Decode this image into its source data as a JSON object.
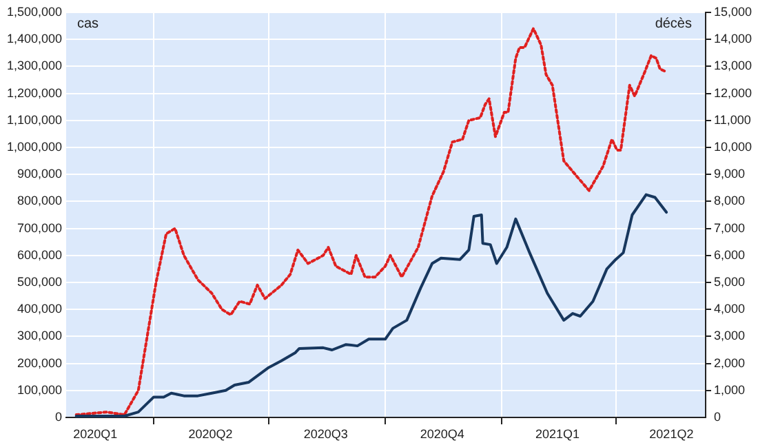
{
  "chart_data": {
    "type": "line",
    "ylabel": "cas",
    "y2label": "décès",
    "x": [
      "2020-01-31",
      "2020-03-09",
      "2020-03-20",
      "2020-04-01",
      "2020-04-09",
      "2020-04-15",
      "2020-04-25",
      "2020-05-06",
      "2020-05-17",
      "2020-05-28",
      "2020-06-04",
      "2020-06-15",
      "2020-07-01",
      "2020-07-11",
      "2020-07-22",
      "2020-07-25",
      "2020-08-13",
      "2020-08-20",
      "2020-08-31",
      "2020-09-09",
      "2020-09-18",
      "2020-10-01",
      "2020-10-07",
      "2020-10-18",
      "2020-10-29",
      "2020-11-07",
      "2020-11-14",
      "2020-11-29",
      "2020-12-06",
      "2020-12-10",
      "2020-12-16",
      "2020-12-17",
      "2020-12-23",
      "2020-12-28",
      "2021-01-05",
      "2021-01-12",
      "2021-01-23",
      "2021-02-06",
      "2021-02-19",
      "2021-02-26",
      "2021-03-04",
      "2021-03-14",
      "2021-03-25",
      "2021-04-01",
      "2021-04-07",
      "2021-04-14",
      "2021-04-25",
      "2021-05-02",
      "2021-05-11"
    ],
    "series": [
      {
        "color": "#17375e",
        "line_style": "solid",
        "values": [
          5000,
          5000,
          20000,
          75000,
          75000,
          90000,
          80000,
          80000,
          90000,
          100000,
          120000,
          130000,
          185000,
          210000,
          240000,
          255000,
          258000,
          250000,
          270000,
          265000,
          290000,
          290000,
          330000,
          360000,
          480000,
          570000,
          590000,
          585000,
          620000,
          745000,
          750000,
          645000,
          640000,
          570000,
          630000,
          735000,
          610000,
          460000,
          360000,
          385000,
          375000,
          430000,
          550000,
          585000,
          610000,
          750000,
          825000,
          815000,
          760000
        ]
      },
      {
        "color": "#e0201f",
        "line_style": "dotted",
        "axis": "y2",
        "x": [
          "2020-01-31",
          "2020-02-24",
          "2020-03-09",
          "2020-03-20",
          "2020-03-27",
          "2020-04-03",
          "2020-04-11",
          "2020-04-18",
          "2020-04-25",
          "2020-05-06",
          "2020-05-17",
          "2020-05-25",
          "2020-06-01",
          "2020-06-08",
          "2020-06-16",
          "2020-06-22",
          "2020-06-28",
          "2020-07-11",
          "2020-07-18",
          "2020-07-24",
          "2020-08-01",
          "2020-08-13",
          "2020-08-17",
          "2020-08-23",
          "2020-09-04",
          "2020-09-08",
          "2020-09-15",
          "2020-09-23",
          "2020-10-01",
          "2020-10-05",
          "2020-10-14",
          "2020-10-27",
          "2020-11-07",
          "2020-11-16",
          "2020-11-23",
          "2020-12-01",
          "2020-12-06",
          "2020-12-15",
          "2020-12-19",
          "2020-12-22",
          "2020-12-27",
          "2021-01-03",
          "2021-01-06",
          "2021-01-12",
          "2021-01-15",
          "2021-01-19",
          "2021-01-26",
          "2021-02-01",
          "2021-02-05",
          "2021-02-10",
          "2021-02-19",
          "2021-02-28",
          "2021-03-11",
          "2021-03-22",
          "2021-03-29",
          "2021-04-02",
          "2021-04-05",
          "2021-04-12",
          "2021-04-16",
          "2021-04-24",
          "2021-04-29",
          "2021-05-03",
          "2021-05-06",
          "2021-05-11"
        ],
        "values": [
          100,
          200,
          100,
          1000,
          3000,
          5000,
          6800,
          7000,
          6000,
          5100,
          4600,
          4000,
          3800,
          4300,
          4200,
          4900,
          4400,
          4900,
          5300,
          6200,
          5700,
          6000,
          6300,
          5600,
          5300,
          6000,
          5200,
          5200,
          5600,
          6000,
          5200,
          6300,
          8200,
          9100,
          10200,
          10300,
          11000,
          11100,
          11600,
          11800,
          10400,
          11300,
          11300,
          13300,
          13700,
          13700,
          14400,
          13800,
          12700,
          12300,
          9500,
          9000,
          8400,
          9300,
          10300,
          9900,
          9900,
          12300,
          11900,
          12800,
          13400,
          13300,
          12900,
          12800
        ]
      }
    ],
    "xlim": [
      "2020-01-23",
      "2021-06-11"
    ],
    "xticks": [
      {
        "value": "2020-02-15",
        "label": "2020Q1"
      },
      {
        "value": "2020-04-01",
        "label": null
      },
      {
        "value": "2020-05-16",
        "label": "2020Q2"
      },
      {
        "value": "2020-07-01",
        "label": null
      },
      {
        "value": "2020-08-15",
        "label": "2020Q3"
      },
      {
        "value": "2020-10-01",
        "label": null
      },
      {
        "value": "2020-11-15",
        "label": "2020Q4"
      },
      {
        "value": "2021-01-01",
        "label": null
      },
      {
        "value": "2021-02-14",
        "label": "2021Q1"
      },
      {
        "value": "2021-04-01",
        "label": null
      },
      {
        "value": "2021-05-15",
        "label": "2021Q2"
      }
    ],
    "ylim": [
      0,
      1500000
    ],
    "yticks": [
      0,
      {
        "value": 100000,
        "label": "100,000"
      },
      {
        "value": 200000,
        "label": "200,000"
      },
      {
        "value": 300000,
        "label": "300,000"
      },
      {
        "value": 400000,
        "label": "400,000"
      },
      {
        "value": 500000,
        "label": "500,000"
      },
      {
        "value": 600000,
        "label": "600,000"
      },
      {
        "value": 700000,
        "label": "700,000"
      },
      {
        "value": 800000,
        "label": "800,000"
      },
      {
        "value": 900000,
        "label": "900,000"
      },
      {
        "value": 1000000,
        "label": "1,000,000"
      },
      {
        "value": 1100000,
        "label": "1,100,000"
      },
      {
        "value": 1200000,
        "label": "1,200,000"
      },
      {
        "value": 1300000,
        "label": "1,300,000"
      },
      {
        "value": 1400000,
        "label": "1,400,000"
      },
      {
        "value": 1500000,
        "label": "1,500,000"
      }
    ],
    "y2lim": [
      0,
      15000
    ],
    "y2ticks": [
      0,
      {
        "value": 1000,
        "label": "1,000"
      },
      {
        "value": 2000,
        "label": "2,000"
      },
      {
        "value": 3000,
        "label": "3,000"
      },
      {
        "value": 4000,
        "label": "4,000"
      },
      {
        "value": 5000,
        "label": "5,000"
      },
      {
        "value": 6000,
        "label": "6,000"
      },
      {
        "value": 7000,
        "label": "7,000"
      },
      {
        "value": 8000,
        "label": "8,000"
      },
      {
        "value": 9000,
        "label": "9,000"
      },
      {
        "value": 10000,
        "label": "10,000"
      },
      {
        "value": 11000,
        "label": "11,000"
      },
      {
        "value": 12000,
        "label": "12,000"
      },
      {
        "value": 13000,
        "label": "13,000"
      },
      {
        "value": 14000,
        "label": "14,000"
      },
      {
        "value": 15000,
        "label": "15,000"
      }
    ],
    "grid": true,
    "legend": false,
    "marker": "none"
  }
}
